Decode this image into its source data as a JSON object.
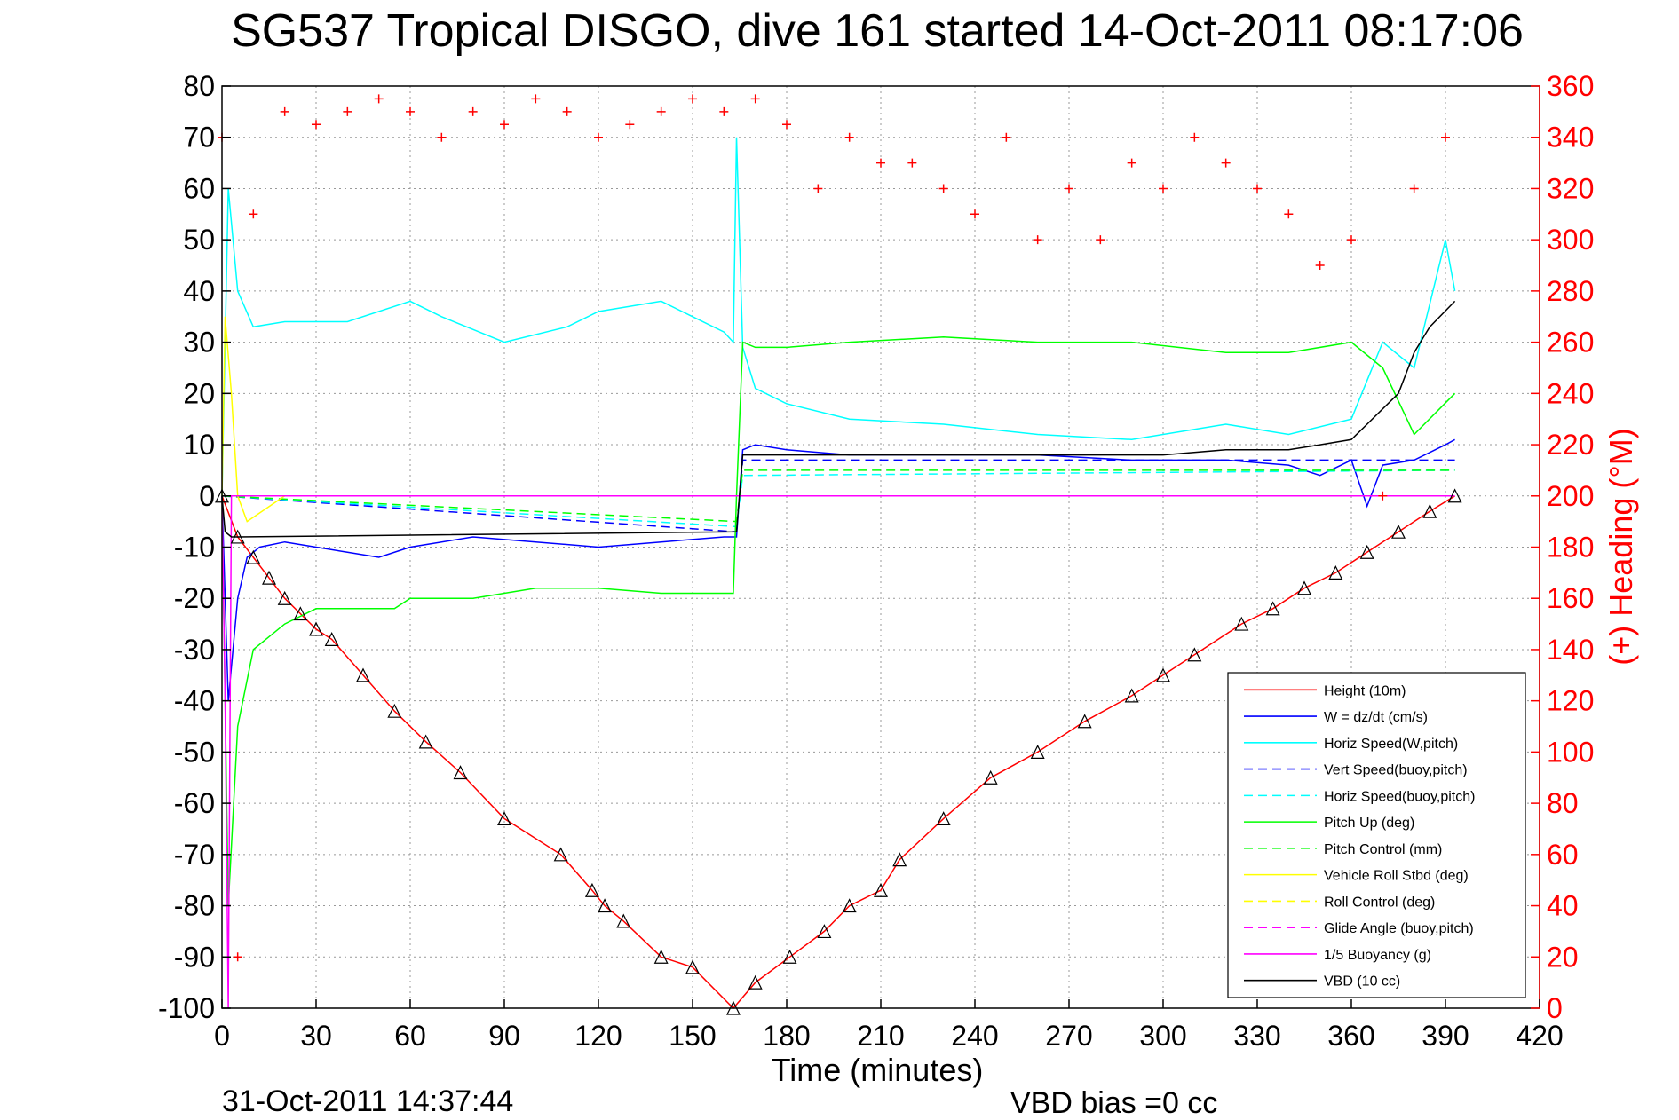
{
  "chart_data": {
    "type": "line",
    "title": "SG537 Tropical DISGO, dive 161 started 14-Oct-2011 08:17:06",
    "xlabel": "Time (minutes)",
    "ylabel_right": "(+) Heading (°M)",
    "xlim": [
      0,
      420
    ],
    "ylim": [
      -100,
      80
    ],
    "ylim_right": [
      0,
      360
    ],
    "x_ticks": [
      0,
      30,
      60,
      90,
      120,
      150,
      180,
      210,
      240,
      270,
      300,
      330,
      360,
      390,
      420
    ],
    "y_ticks": [
      -100,
      -90,
      -80,
      -70,
      -60,
      -50,
      -40,
      -30,
      -20,
      -10,
      0,
      10,
      20,
      30,
      40,
      50,
      60,
      70,
      80
    ],
    "y_ticks_right": [
      0,
      20,
      40,
      60,
      80,
      100,
      120,
      140,
      160,
      180,
      200,
      220,
      240,
      260,
      280,
      300,
      320,
      340,
      360
    ],
    "grid": true,
    "legend_position": "bottom-right",
    "footer_date": "31-Oct-2011 14:37:44",
    "footer_bias": "VBD bias =0 cc",
    "series": [
      {
        "name": "Height (10m)",
        "color": "#ff0000",
        "style": "solid",
        "x": [
          0,
          5,
          10,
          15,
          20,
          25,
          30,
          35,
          45,
          55,
          65,
          76,
          90,
          108,
          118,
          122,
          128,
          140,
          150,
          163,
          170,
          181,
          192,
          200,
          210,
          216,
          230,
          245,
          260,
          275,
          290,
          300,
          310,
          325,
          335,
          345,
          355,
          365,
          375,
          385,
          393
        ],
        "y": [
          0,
          -8,
          -12,
          -16,
          -20,
          -23,
          -26,
          -28,
          -35,
          -42,
          -48,
          -54,
          -63,
          -70,
          -77,
          -80,
          -83,
          -90,
          -92,
          -100,
          -95,
          -90,
          -85,
          -80,
          -77,
          -71,
          -63,
          -55,
          -50,
          -44,
          -39,
          -35,
          -31,
          -25,
          -22,
          -18,
          -15,
          -11,
          -7,
          -3,
          0
        ]
      },
      {
        "name": "W = dz/dt (cm/s)",
        "color": "#0000ff",
        "style": "solid",
        "x": [
          0,
          2,
          5,
          8,
          12,
          20,
          30,
          40,
          50,
          60,
          80,
          100,
          120,
          140,
          160,
          164,
          166,
          170,
          180,
          200,
          230,
          260,
          290,
          320,
          340,
          350,
          360,
          365,
          370,
          380,
          390,
          393
        ],
        "y": [
          0,
          -40,
          -20,
          -12,
          -10,
          -9,
          -10,
          -11,
          -12,
          -10,
          -8,
          -9,
          -10,
          -9,
          -8,
          -8,
          9,
          10,
          9,
          8,
          8,
          8,
          7,
          7,
          6,
          4,
          7,
          -2,
          6,
          7,
          10,
          11
        ]
      },
      {
        "name": "Horiz Speed(W,pitch)",
        "color": "#00ffff",
        "style": "solid",
        "x": [
          0,
          2,
          5,
          10,
          20,
          40,
          60,
          70,
          90,
          110,
          120,
          140,
          150,
          160,
          163,
          164,
          166,
          170,
          180,
          200,
          230,
          260,
          290,
          320,
          340,
          360,
          370,
          380,
          390,
          393
        ],
        "y": [
          0,
          60,
          40,
          33,
          34,
          34,
          38,
          35,
          30,
          33,
          36,
          38,
          35,
          32,
          30,
          70,
          29,
          21,
          18,
          15,
          14,
          12,
          11,
          14,
          12,
          15,
          30,
          25,
          50,
          40
        ]
      },
      {
        "name": "Vert Speed(buoy,pitch)",
        "color": "#0000ff",
        "style": "dashed",
        "x": [
          0,
          164,
          166,
          393
        ],
        "y": [
          0,
          -7,
          7,
          7
        ]
      },
      {
        "name": "Horiz Speed(buoy,pitch)",
        "color": "#00ffff",
        "style": "dashed",
        "x": [
          0,
          164,
          166,
          393
        ],
        "y": [
          0,
          -6,
          4,
          5
        ]
      },
      {
        "name": "Pitch Up (deg)",
        "color": "#00ff00",
        "style": "solid",
        "x": [
          0,
          2,
          5,
          10,
          20,
          30,
          40,
          55,
          60,
          80,
          100,
          120,
          140,
          163,
          164,
          166,
          170,
          180,
          200,
          230,
          260,
          290,
          320,
          340,
          360,
          370,
          380,
          393
        ],
        "y": [
          0,
          -80,
          -45,
          -30,
          -25,
          -22,
          -22,
          -22,
          -20,
          -20,
          -18,
          -18,
          -19,
          -19,
          0,
          30,
          29,
          29,
          30,
          31,
          30,
          30,
          28,
          28,
          30,
          25,
          12,
          20
        ]
      },
      {
        "name": "Pitch Control (mm)",
        "color": "#00ff00",
        "style": "dashed",
        "x": [
          0,
          164,
          166,
          393
        ],
        "y": [
          0,
          -5,
          5,
          5
        ]
      },
      {
        "name": "Vehicle Roll Stbd (deg)",
        "color": "#ffff00",
        "style": "solid",
        "x": [
          0,
          1,
          3,
          5,
          8,
          20,
          30,
          60,
          90,
          120,
          150,
          180,
          240,
          300,
          330,
          360,
          393
        ],
        "y": [
          0,
          35,
          20,
          0,
          -5,
          0,
          0,
          0,
          0,
          0,
          0,
          0,
          0,
          0,
          0,
          0,
          0
        ]
      },
      {
        "name": "Roll Control (deg)",
        "color": "#ffff00",
        "style": "dashed",
        "x": [
          0,
          393
        ],
        "y": [
          0,
          0
        ]
      },
      {
        "name": "Glide Angle (buoy,pitch)",
        "color": "#ff00ff",
        "style": "dashed",
        "x": [
          0,
          393
        ],
        "y": [
          0,
          0
        ]
      },
      {
        "name": "1/5 Buoyancy (g)",
        "color": "#ff00ff",
        "style": "solid",
        "x": [
          0,
          1,
          2,
          3,
          393
        ],
        "y": [
          0,
          -40,
          -100,
          0,
          0
        ]
      },
      {
        "name": "VBD (10 cc)",
        "color": "#000000",
        "style": "solid",
        "x": [
          0,
          1,
          3,
          5,
          164,
          166,
          300,
          320,
          340,
          350,
          360,
          365,
          375,
          380,
          385,
          393
        ],
        "y": [
          0,
          -7,
          -8,
          -8,
          -7,
          8,
          8,
          9,
          9,
          10,
          11,
          14,
          20,
          28,
          33,
          38
        ]
      },
      {
        "name": "Heading",
        "color": "#ff0000",
        "style": "plus",
        "axis": "right",
        "x": [
          0,
          5,
          10,
          20,
          30,
          40,
          50,
          60,
          70,
          80,
          90,
          100,
          110,
          120,
          130,
          140,
          150,
          160,
          170,
          180,
          190,
          200,
          210,
          220,
          230,
          240,
          250,
          260,
          270,
          280,
          290,
          300,
          310,
          320,
          330,
          340,
          350,
          360,
          370,
          380,
          390
        ],
        "y": [
          340,
          20,
          310,
          350,
          345,
          350,
          355,
          350,
          340,
          350,
          345,
          355,
          350,
          340,
          345,
          350,
          355,
          350,
          355,
          345,
          320,
          340,
          330,
          330,
          320,
          310,
          340,
          300,
          320,
          300,
          330,
          320,
          340,
          330,
          320,
          310,
          290,
          300,
          200,
          320,
          340
        ]
      }
    ]
  }
}
